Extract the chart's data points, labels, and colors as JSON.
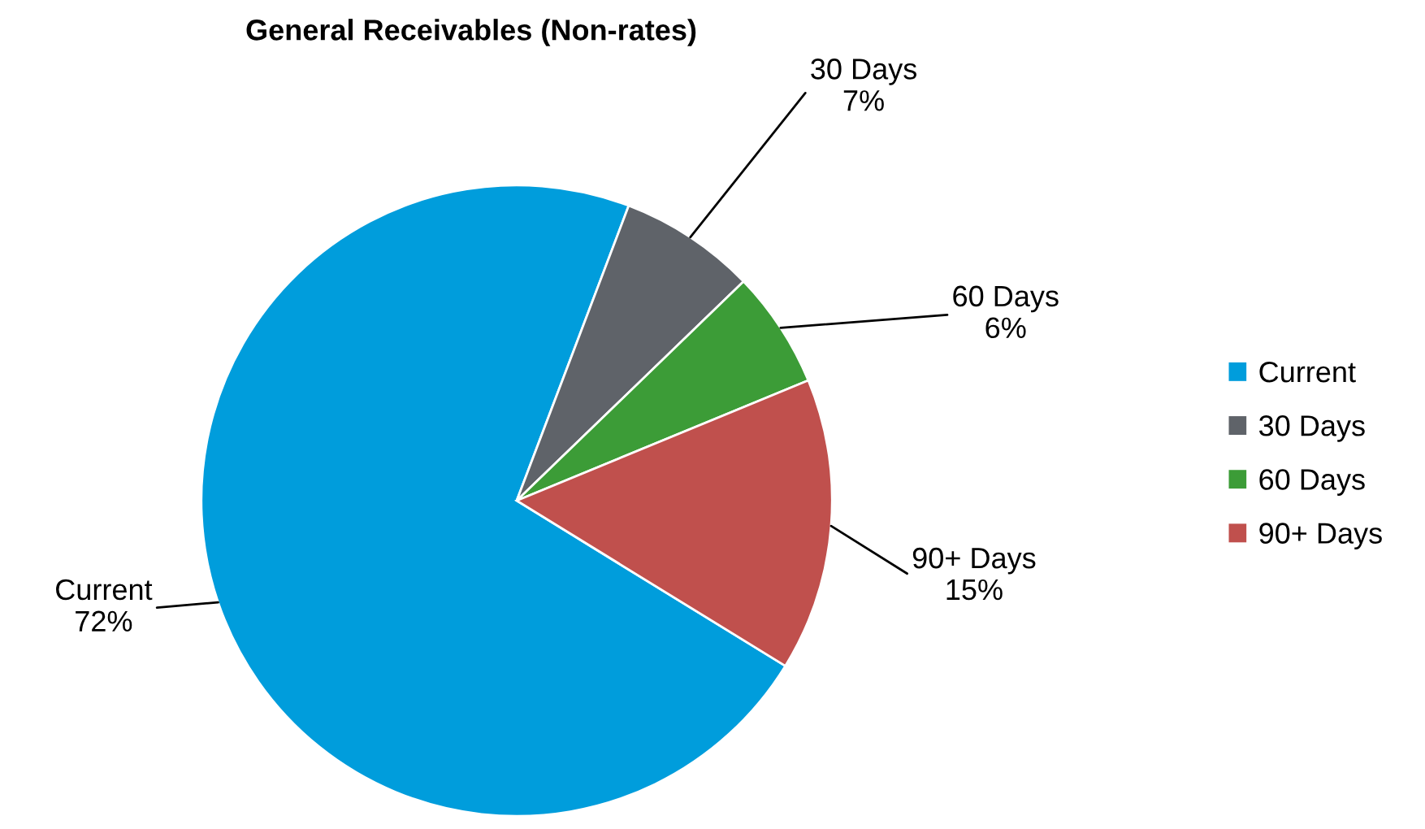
{
  "chart_data": {
    "type": "pie",
    "title": "General Receivables (Non-rates)",
    "categories": [
      "Current",
      "30 Days",
      "60 Days",
      "90+ Days"
    ],
    "values": [
      72,
      7,
      6,
      15
    ],
    "colors": [
      "#009ddc",
      "#5f6369",
      "#3c9c37",
      "#c0504d"
    ],
    "value_labels": [
      "72%",
      "7%",
      "6%",
      "15%"
    ],
    "legend": "right"
  }
}
